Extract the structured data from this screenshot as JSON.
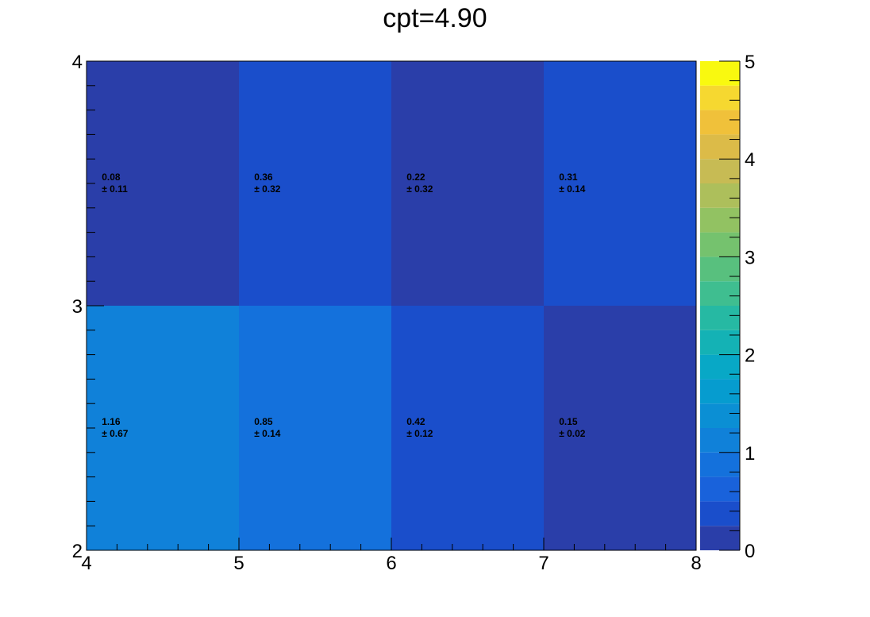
{
  "chart_data": {
    "type": "heatmap",
    "title": "cpt=4.90",
    "xlabel": "",
    "ylabel": "",
    "xlim": [
      4,
      8
    ],
    "ylim": [
      2,
      4
    ],
    "x_edges": [
      4,
      5,
      6,
      7,
      8
    ],
    "y_edges": [
      2,
      3,
      4
    ],
    "x_ticks": [
      "4",
      "5",
      "6",
      "7",
      "8"
    ],
    "y_ticks": [
      "2",
      "3",
      "4"
    ],
    "colorbar": {
      "range": [
        0,
        5
      ],
      "ticks": [
        "0",
        "1",
        "2",
        "3",
        "4",
        "5"
      ],
      "n_levels": 20,
      "palette": [
        "#2a3ea9",
        "#1a4ecb",
        "#1962db",
        "#1471dc",
        "#1081d9",
        "#0b8fd4",
        "#069ccf",
        "#08a8c6",
        "#14b2b5",
        "#26b9a3",
        "#3fbe90",
        "#58c07e",
        "#75c26e",
        "#92c262",
        "#adbf5b",
        "#c7bb54",
        "#dcbb48",
        "#f0c13a",
        "#f6d830",
        "#f9f90f"
      ]
    },
    "cells": [
      {
        "x": [
          4,
          5
        ],
        "y": [
          3,
          4
        ],
        "value": 0.08,
        "error": 0.11,
        "label": "0.08",
        "err_label": "± 0.11"
      },
      {
        "x": [
          5,
          6
        ],
        "y": [
          3,
          4
        ],
        "value": 0.36,
        "error": 0.32,
        "label": "0.36",
        "err_label": "± 0.32"
      },
      {
        "x": [
          6,
          7
        ],
        "y": [
          3,
          4
        ],
        "value": 0.22,
        "error": 0.32,
        "label": "0.22",
        "err_label": "± 0.32"
      },
      {
        "x": [
          7,
          8
        ],
        "y": [
          3,
          4
        ],
        "value": 0.31,
        "error": 0.14,
        "label": "0.31",
        "err_label": "± 0.14"
      },
      {
        "x": [
          4,
          5
        ],
        "y": [
          2,
          3
        ],
        "value": 1.16,
        "error": 0.67,
        "label": "1.16",
        "err_label": "± 0.67"
      },
      {
        "x": [
          5,
          6
        ],
        "y": [
          2,
          3
        ],
        "value": 0.85,
        "error": 0.14,
        "label": "0.85",
        "err_label": "± 0.14"
      },
      {
        "x": [
          6,
          7
        ],
        "y": [
          2,
          3
        ],
        "value": 0.42,
        "error": 0.12,
        "label": "0.42",
        "err_label": "± 0.12"
      },
      {
        "x": [
          7,
          8
        ],
        "y": [
          2,
          3
        ],
        "value": 0.15,
        "error": 0.02,
        "label": "0.15",
        "err_label": "± 0.02"
      }
    ]
  }
}
